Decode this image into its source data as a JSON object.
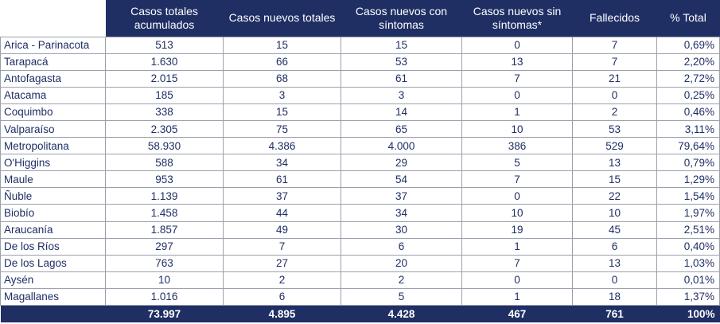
{
  "headers": [
    "",
    "Casos totales acumulados",
    "Casos nuevos totales",
    "Casos nuevos con síntomas",
    "Casos nuevos sin síntomas*",
    "Fallecidos",
    "% Total"
  ],
  "rows": [
    [
      "Arica - Parinacota",
      "513",
      "15",
      "15",
      "0",
      "7",
      "0,69%"
    ],
    [
      "Tarapacá",
      "1.630",
      "66",
      "53",
      "13",
      "7",
      "2,20%"
    ],
    [
      "Antofagasta",
      "2.015",
      "68",
      "61",
      "7",
      "21",
      "2,72%"
    ],
    [
      "Atacama",
      "185",
      "3",
      "3",
      "0",
      "0",
      "0,25%"
    ],
    [
      "Coquimbo",
      "338",
      "15",
      "14",
      "1",
      "2",
      "0,46%"
    ],
    [
      "Valparaíso",
      "2.305",
      "75",
      "65",
      "10",
      "53",
      "3,11%"
    ],
    [
      "Metropolitana",
      "58.930",
      "4.386",
      "4.000",
      "386",
      "529",
      "79,64%"
    ],
    [
      "O'Higgins",
      "588",
      "34",
      "29",
      "5",
      "13",
      "0,79%"
    ],
    [
      "Maule",
      "953",
      "61",
      "54",
      "7",
      "15",
      "1,29%"
    ],
    [
      "Ñuble",
      "1.139",
      "37",
      "37",
      "0",
      "22",
      "1,54%"
    ],
    [
      "Biobío",
      "1.458",
      "44",
      "34",
      "10",
      "10",
      "1,97%"
    ],
    [
      "Araucanía",
      "1.857",
      "49",
      "30",
      "19",
      "45",
      "2,51%"
    ],
    [
      "De los Ríos",
      "297",
      "7",
      "6",
      "1",
      "6",
      "0,40%"
    ],
    [
      "De los Lagos",
      "763",
      "27",
      "20",
      "7",
      "13",
      "1,03%"
    ],
    [
      "Aysén",
      "10",
      "2",
      "2",
      "0",
      "0",
      "0,01%"
    ],
    [
      "Magallanes",
      "1.016",
      "6",
      "5",
      "1",
      "18",
      "1,37%"
    ]
  ],
  "totals": [
    "",
    "73.997",
    "4.895",
    "4.428",
    "467",
    "761",
    "100%"
  ],
  "colors": {
    "header_bg": "#1f2f64",
    "header_text": "#ffffff",
    "cell_text": "#1f2f64",
    "grid": "#9aa0ac"
  }
}
